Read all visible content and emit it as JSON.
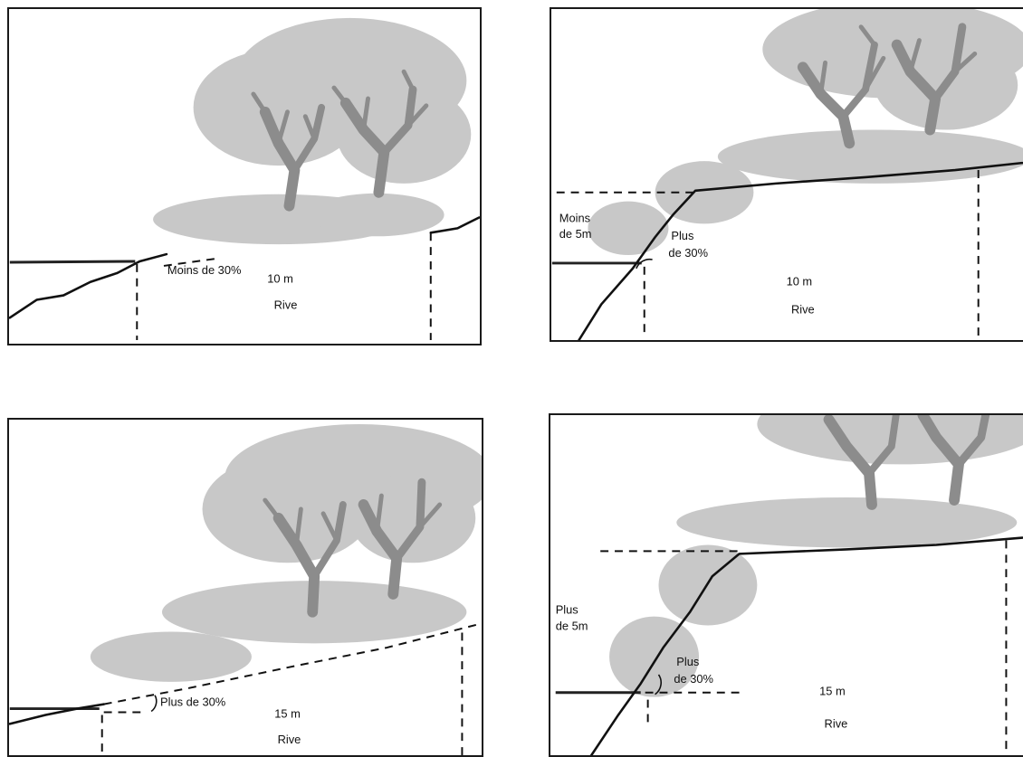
{
  "panels": [
    {
      "id": "top-left",
      "slope_label": "Moins de 30%",
      "width_label": "10 m",
      "zone_label": "Rive"
    },
    {
      "id": "top-right",
      "height_label_line1": "Moins",
      "height_label_line2": "de 5m",
      "slope_label_line1": "Plus",
      "slope_label_line2": "de 30%",
      "width_label": "10 m",
      "zone_label": "Rive"
    },
    {
      "id": "bottom-left",
      "slope_label": "Plus de 30%",
      "width_label": "15 m",
      "zone_label": "Rive"
    },
    {
      "id": "bottom-right",
      "height_label_line1": "Plus",
      "height_label_line2": "de 5m",
      "slope_label_line1": "Plus",
      "slope_label_line2": "de 30%",
      "width_label": "15 m",
      "zone_label": "Rive"
    }
  ],
  "colors": {
    "frame": "#1a1a1a",
    "vegetation": "#c8c8c8",
    "trunk": "#8c8c8c",
    "ground_line": "#111111"
  },
  "icons": [
    "tree-icon",
    "water-level-icon",
    "slope-angle-arc"
  ]
}
